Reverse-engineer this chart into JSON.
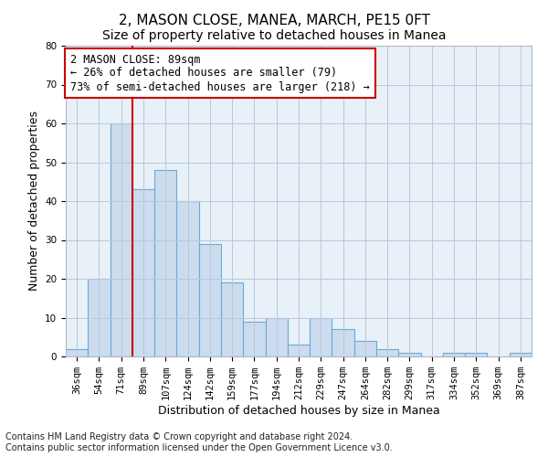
{
  "title": "2, MASON CLOSE, MANEA, MARCH, PE15 0FT",
  "subtitle": "Size of property relative to detached houses in Manea",
  "xlabel": "Distribution of detached houses by size in Manea",
  "ylabel": "Number of detached properties",
  "bar_labels": [
    "36sqm",
    "54sqm",
    "71sqm",
    "89sqm",
    "107sqm",
    "124sqm",
    "142sqm",
    "159sqm",
    "177sqm",
    "194sqm",
    "212sqm",
    "229sqm",
    "247sqm",
    "264sqm",
    "282sqm",
    "299sqm",
    "317sqm",
    "334sqm",
    "352sqm",
    "369sqm",
    "387sqm"
  ],
  "bar_values": [
    2,
    20,
    60,
    43,
    48,
    40,
    29,
    19,
    9,
    10,
    3,
    10,
    7,
    4,
    2,
    1,
    0,
    1,
    1,
    0,
    1
  ],
  "bar_color": "#ccdcee",
  "bar_edge_color": "#6aaad4",
  "vline_color": "#cc0000",
  "ylim": [
    0,
    80
  ],
  "yticks": [
    0,
    10,
    20,
    30,
    40,
    50,
    60,
    70,
    80
  ],
  "annotation_text": "2 MASON CLOSE: 89sqm\n← 26% of detached houses are smaller (79)\n73% of semi-detached houses are larger (218) →",
  "annotation_box_color": "#ffffff",
  "annotation_box_edge": "#cc0000",
  "footer_line1": "Contains HM Land Registry data © Crown copyright and database right 2024.",
  "footer_line2": "Contains public sector information licensed under the Open Government Licence v3.0.",
  "background_color": "#ffffff",
  "plot_bg_color": "#e8f0f8",
  "grid_color": "#b8c8dc",
  "title_fontsize": 11,
  "subtitle_fontsize": 10,
  "xlabel_fontsize": 9,
  "ylabel_fontsize": 9,
  "tick_fontsize": 7.5,
  "annotation_fontsize": 8.5,
  "footer_fontsize": 7
}
